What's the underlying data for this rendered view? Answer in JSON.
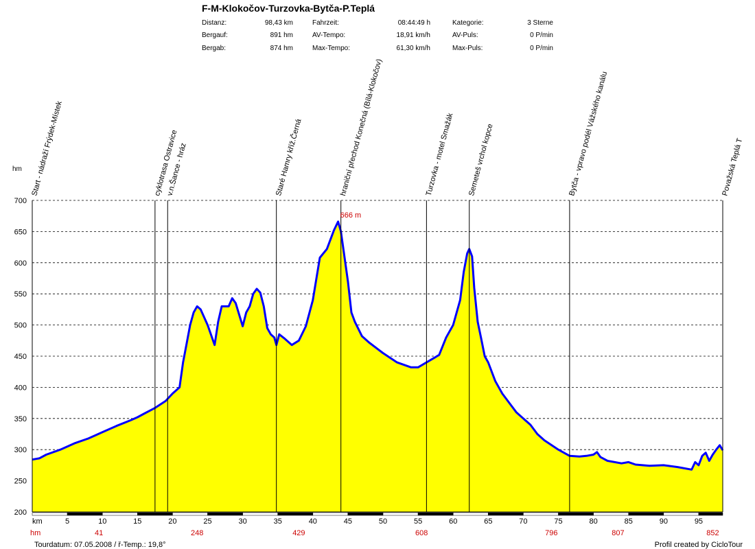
{
  "header": {
    "title": "F-M-Klokočov-Turzovka-Bytča-P.Teplá",
    "stats": [
      {
        "label": "Distanz:",
        "value": "98,43 km"
      },
      {
        "label": "Bergauf:",
        "value": "891 hm"
      },
      {
        "label": "Bergab:",
        "value": "874 hm"
      },
      {
        "label": "Fahrzeit:",
        "value": "08:44:49 h"
      },
      {
        "label": "AV-Tempo:",
        "value": "18,91 km/h"
      },
      {
        "label": "Max-Tempo:",
        "value": "61,30 km/h"
      },
      {
        "label": "Kategorie:",
        "value": "3 Sterne"
      },
      {
        "label": "AV-Puls:",
        "value": "0 P/min"
      },
      {
        "label": "Max-Puls:",
        "value": "0 P/min"
      }
    ]
  },
  "chart_data": {
    "type": "area",
    "ylabel": "hm",
    "xlabel": "km",
    "ylim": [
      200,
      700
    ],
    "xlim": [
      0,
      98.43
    ],
    "yticks": [
      200,
      250,
      300,
      350,
      400,
      450,
      500,
      550,
      600,
      650,
      700
    ],
    "xticks": [
      5,
      10,
      15,
      20,
      25,
      30,
      35,
      40,
      45,
      50,
      55,
      60,
      65,
      70,
      75,
      80,
      85,
      90,
      95
    ],
    "grid": "horizontal dashed",
    "fill_color": "#ffff00",
    "line_color": "#0000ff",
    "peak_label": "666 m",
    "peak": {
      "x": 43.6,
      "y": 666
    },
    "hm_row_label": "hm",
    "hm_row": [
      {
        "x": 9.5,
        "label": "41"
      },
      {
        "x": 23.5,
        "label": "248"
      },
      {
        "x": 38,
        "label": "429"
      },
      {
        "x": 55.5,
        "label": "608"
      },
      {
        "x": 74,
        "label": "796"
      },
      {
        "x": 83.5,
        "label": "807"
      },
      {
        "x": 97,
        "label": "852"
      }
    ],
    "waypoints": [
      {
        "x": 0,
        "label": "Start - nádraží Frýdek-Místek"
      },
      {
        "x": 17.5,
        "label": "cyklotrasa Ostravice"
      },
      {
        "x": 19.3,
        "label": "v.n.Šance - hráz"
      },
      {
        "x": 34.8,
        "label": "Staré Hamry kříž.Černá"
      },
      {
        "x": 44,
        "label": "hraniční přechod Konečná (Bílá-Klokočov)"
      },
      {
        "x": 56.2,
        "label": "Turzovka - motel Smažák"
      },
      {
        "x": 62.3,
        "label": "Semeteš vrchol kopce"
      },
      {
        "x": 76.6,
        "label": "Bytča - vpravo podél Vážského kanálu"
      },
      {
        "x": 98.43,
        "label": "Považská Teplá T"
      }
    ],
    "x": [
      0,
      1,
      2,
      4,
      6,
      8,
      10,
      12,
      14,
      15,
      16,
      17.5,
      19,
      20,
      21,
      21.5,
      22,
      22.5,
      23,
      23.5,
      24,
      25,
      26,
      26.5,
      27,
      28,
      28.5,
      29,
      30,
      30.5,
      31,
      31.5,
      32,
      32.5,
      33,
      33.5,
      34,
      34.5,
      34.8,
      35.2,
      36,
      37,
      38,
      39,
      40,
      41,
      42,
      43,
      43.6,
      44,
      45,
      45.5,
      46,
      47,
      48,
      50,
      52,
      54,
      55,
      56.2,
      58,
      59,
      60,
      61,
      61.5,
      62,
      62.3,
      62.7,
      63,
      63.5,
      64,
      64.5,
      65,
      66,
      67,
      68,
      69,
      70,
      71,
      72,
      73,
      75,
      76.6,
      78,
      79,
      80,
      80.5,
      81,
      82,
      84,
      85,
      86,
      88,
      90,
      92,
      94,
      94.5,
      95,
      95.5,
      96,
      96.5,
      97,
      97.5,
      98,
      98.43
    ],
    "values": [
      284,
      286,
      292,
      300,
      310,
      318,
      328,
      338,
      347,
      352,
      358,
      367,
      378,
      390,
      400,
      440,
      470,
      500,
      520,
      530,
      525,
      500,
      468,
      505,
      530,
      530,
      543,
      535,
      498,
      520,
      530,
      550,
      558,
      552,
      530,
      495,
      485,
      480,
      468,
      485,
      478,
      468,
      475,
      498,
      540,
      608,
      622,
      652,
      666,
      650,
      570,
      520,
      505,
      482,
      472,
      455,
      440,
      432,
      432,
      440,
      452,
      480,
      500,
      540,
      585,
      615,
      622,
      610,
      560,
      505,
      478,
      450,
      440,
      410,
      390,
      375,
      360,
      350,
      340,
      325,
      315,
      300,
      290,
      289,
      290,
      292,
      296,
      288,
      282,
      278,
      280,
      276,
      274,
      275,
      272,
      268,
      280,
      275,
      290,
      295,
      282,
      292,
      300,
      307,
      299
    ]
  },
  "footer": {
    "tour_date": "Tourdatum: 07.05.2008  /  ř-Temp.: 19,8°",
    "credit": "Profil created by CicloTour"
  }
}
